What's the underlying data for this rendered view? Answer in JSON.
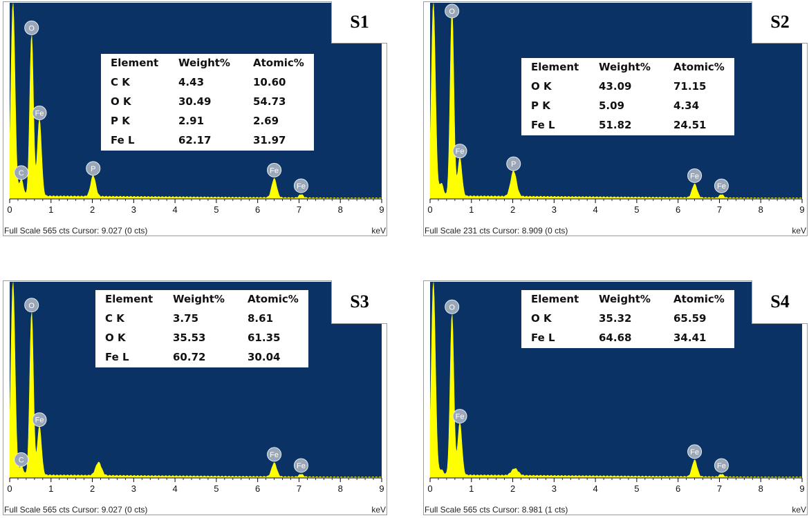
{
  "colors": {
    "plot_bg": "#0a3264",
    "spectrum": "#ffff00",
    "label_bubble": "#9aa7b8"
  },
  "chart_data": [
    {
      "type": "area",
      "sample": "S1",
      "footer": "Full Scale 565 cts Cursor: 9.027  (0 cts)",
      "x_unit": "keV",
      "xlim": [
        0,
        9
      ],
      "x_ticks": [
        "0",
        "1",
        "2",
        "3",
        "4",
        "5",
        "6",
        "7",
        "8",
        "9"
      ],
      "ylim": [
        0,
        565
      ],
      "peaks": [
        {
          "x": 0.08,
          "y": 565,
          "w": 0.05
        },
        {
          "x": 0.28,
          "y": 48,
          "w": 0.05,
          "label": "C"
        },
        {
          "x": 0.53,
          "y": 465,
          "w": 0.045,
          "label": "O"
        },
        {
          "x": 0.72,
          "y": 220,
          "w": 0.05,
          "label": "Fe"
        },
        {
          "x": 2.02,
          "y": 60,
          "w": 0.06,
          "label": "P"
        },
        {
          "x": 6.4,
          "y": 55,
          "w": 0.06,
          "label": "Fe"
        },
        {
          "x": 7.05,
          "y": 10,
          "w": 0.05,
          "label": "Fe"
        }
      ],
      "table": {
        "headers": [
          "Element",
          "Weight%",
          "Atomic%"
        ],
        "rows": [
          [
            "C K",
            "4.43",
            "10.60"
          ],
          [
            "O K",
            "30.49",
            "54.73"
          ],
          [
            "P K",
            "2.91",
            "2.69"
          ],
          [
            "Fe L",
            "62.17",
            "31.97"
          ]
        ]
      }
    },
    {
      "type": "area",
      "sample": "S2",
      "footer": "Full Scale 231 cts Cursor: 8.909  (0 cts)",
      "x_unit": "keV",
      "xlim": [
        0,
        9
      ],
      "x_ticks": [
        "0",
        "1",
        "2",
        "3",
        "4",
        "5",
        "6",
        "7",
        "8",
        "9"
      ],
      "ylim": [
        0,
        231
      ],
      "peaks": [
        {
          "x": 0.08,
          "y": 231,
          "w": 0.05
        },
        {
          "x": 0.27,
          "y": 15,
          "w": 0.05
        },
        {
          "x": 0.53,
          "y": 222,
          "w": 0.045,
          "label": "O"
        },
        {
          "x": 0.72,
          "y": 45,
          "w": 0.05,
          "label": "Fe"
        },
        {
          "x": 2.02,
          "y": 30,
          "w": 0.07,
          "label": "P"
        },
        {
          "x": 6.4,
          "y": 16,
          "w": 0.06,
          "label": "Fe"
        },
        {
          "x": 7.05,
          "y": 4,
          "w": 0.05,
          "label": "Fe"
        }
      ],
      "table": {
        "headers": [
          "Element",
          "Weight%",
          "Atomic%"
        ],
        "rows": [
          [
            "O K",
            "43.09",
            "71.15"
          ],
          [
            "P K",
            "5.09",
            "4.34"
          ],
          [
            "Fe L",
            "51.82",
            "24.51"
          ]
        ]
      }
    },
    {
      "type": "area",
      "sample": "S3",
      "footer": "Full Scale 565 cts Cursor: 9.027  (0 cts)",
      "x_unit": "keV",
      "xlim": [
        0,
        9
      ],
      "x_ticks": [
        "0",
        "1",
        "2",
        "3",
        "4",
        "5",
        "6",
        "7",
        "8",
        "9"
      ],
      "ylim": [
        0,
        565
      ],
      "peaks": [
        {
          "x": 0.08,
          "y": 565,
          "w": 0.05
        },
        {
          "x": 0.28,
          "y": 25,
          "w": 0.05,
          "label": "C"
        },
        {
          "x": 0.53,
          "y": 470,
          "w": 0.045,
          "label": "O"
        },
        {
          "x": 0.72,
          "y": 140,
          "w": 0.05,
          "label": "Fe"
        },
        {
          "x": 2.15,
          "y": 38,
          "w": 0.07
        },
        {
          "x": 6.4,
          "y": 40,
          "w": 0.06,
          "label": "Fe"
        },
        {
          "x": 7.05,
          "y": 8,
          "w": 0.05,
          "label": "Fe"
        }
      ],
      "table": {
        "headers": [
          "Element",
          "Weight%",
          "Atomic%"
        ],
        "rows": [
          [
            "C K",
            "3.75",
            "8.61"
          ],
          [
            "O K",
            "35.53",
            "61.35"
          ],
          [
            "Fe L",
            "60.72",
            "30.04"
          ]
        ]
      }
    },
    {
      "type": "area",
      "sample": "S4",
      "footer": "Full Scale 565 cts Cursor: 8.981  (1 cts)",
      "x_unit": "keV",
      "xlim": [
        0,
        9
      ],
      "x_ticks": [
        "0",
        "1",
        "2",
        "3",
        "4",
        "5",
        "6",
        "7",
        "8",
        "9"
      ],
      "ylim": [
        0,
        565
      ],
      "peaks": [
        {
          "x": 0.08,
          "y": 565,
          "w": 0.05
        },
        {
          "x": 0.27,
          "y": 15,
          "w": 0.05
        },
        {
          "x": 0.53,
          "y": 465,
          "w": 0.045,
          "label": "O"
        },
        {
          "x": 0.72,
          "y": 150,
          "w": 0.05,
          "label": "Fe"
        },
        {
          "x": 2.05,
          "y": 20,
          "w": 0.08
        },
        {
          "x": 6.4,
          "y": 48,
          "w": 0.06,
          "label": "Fe"
        },
        {
          "x": 7.05,
          "y": 8,
          "w": 0.05,
          "label": "Fe"
        }
      ],
      "table": {
        "headers": [
          "Element",
          "Weight%",
          "Atomic%"
        ],
        "rows": [
          [
            "O K",
            "35.32",
            "65.59"
          ],
          [
            "Fe L",
            "64.68",
            "34.41"
          ]
        ]
      }
    }
  ]
}
